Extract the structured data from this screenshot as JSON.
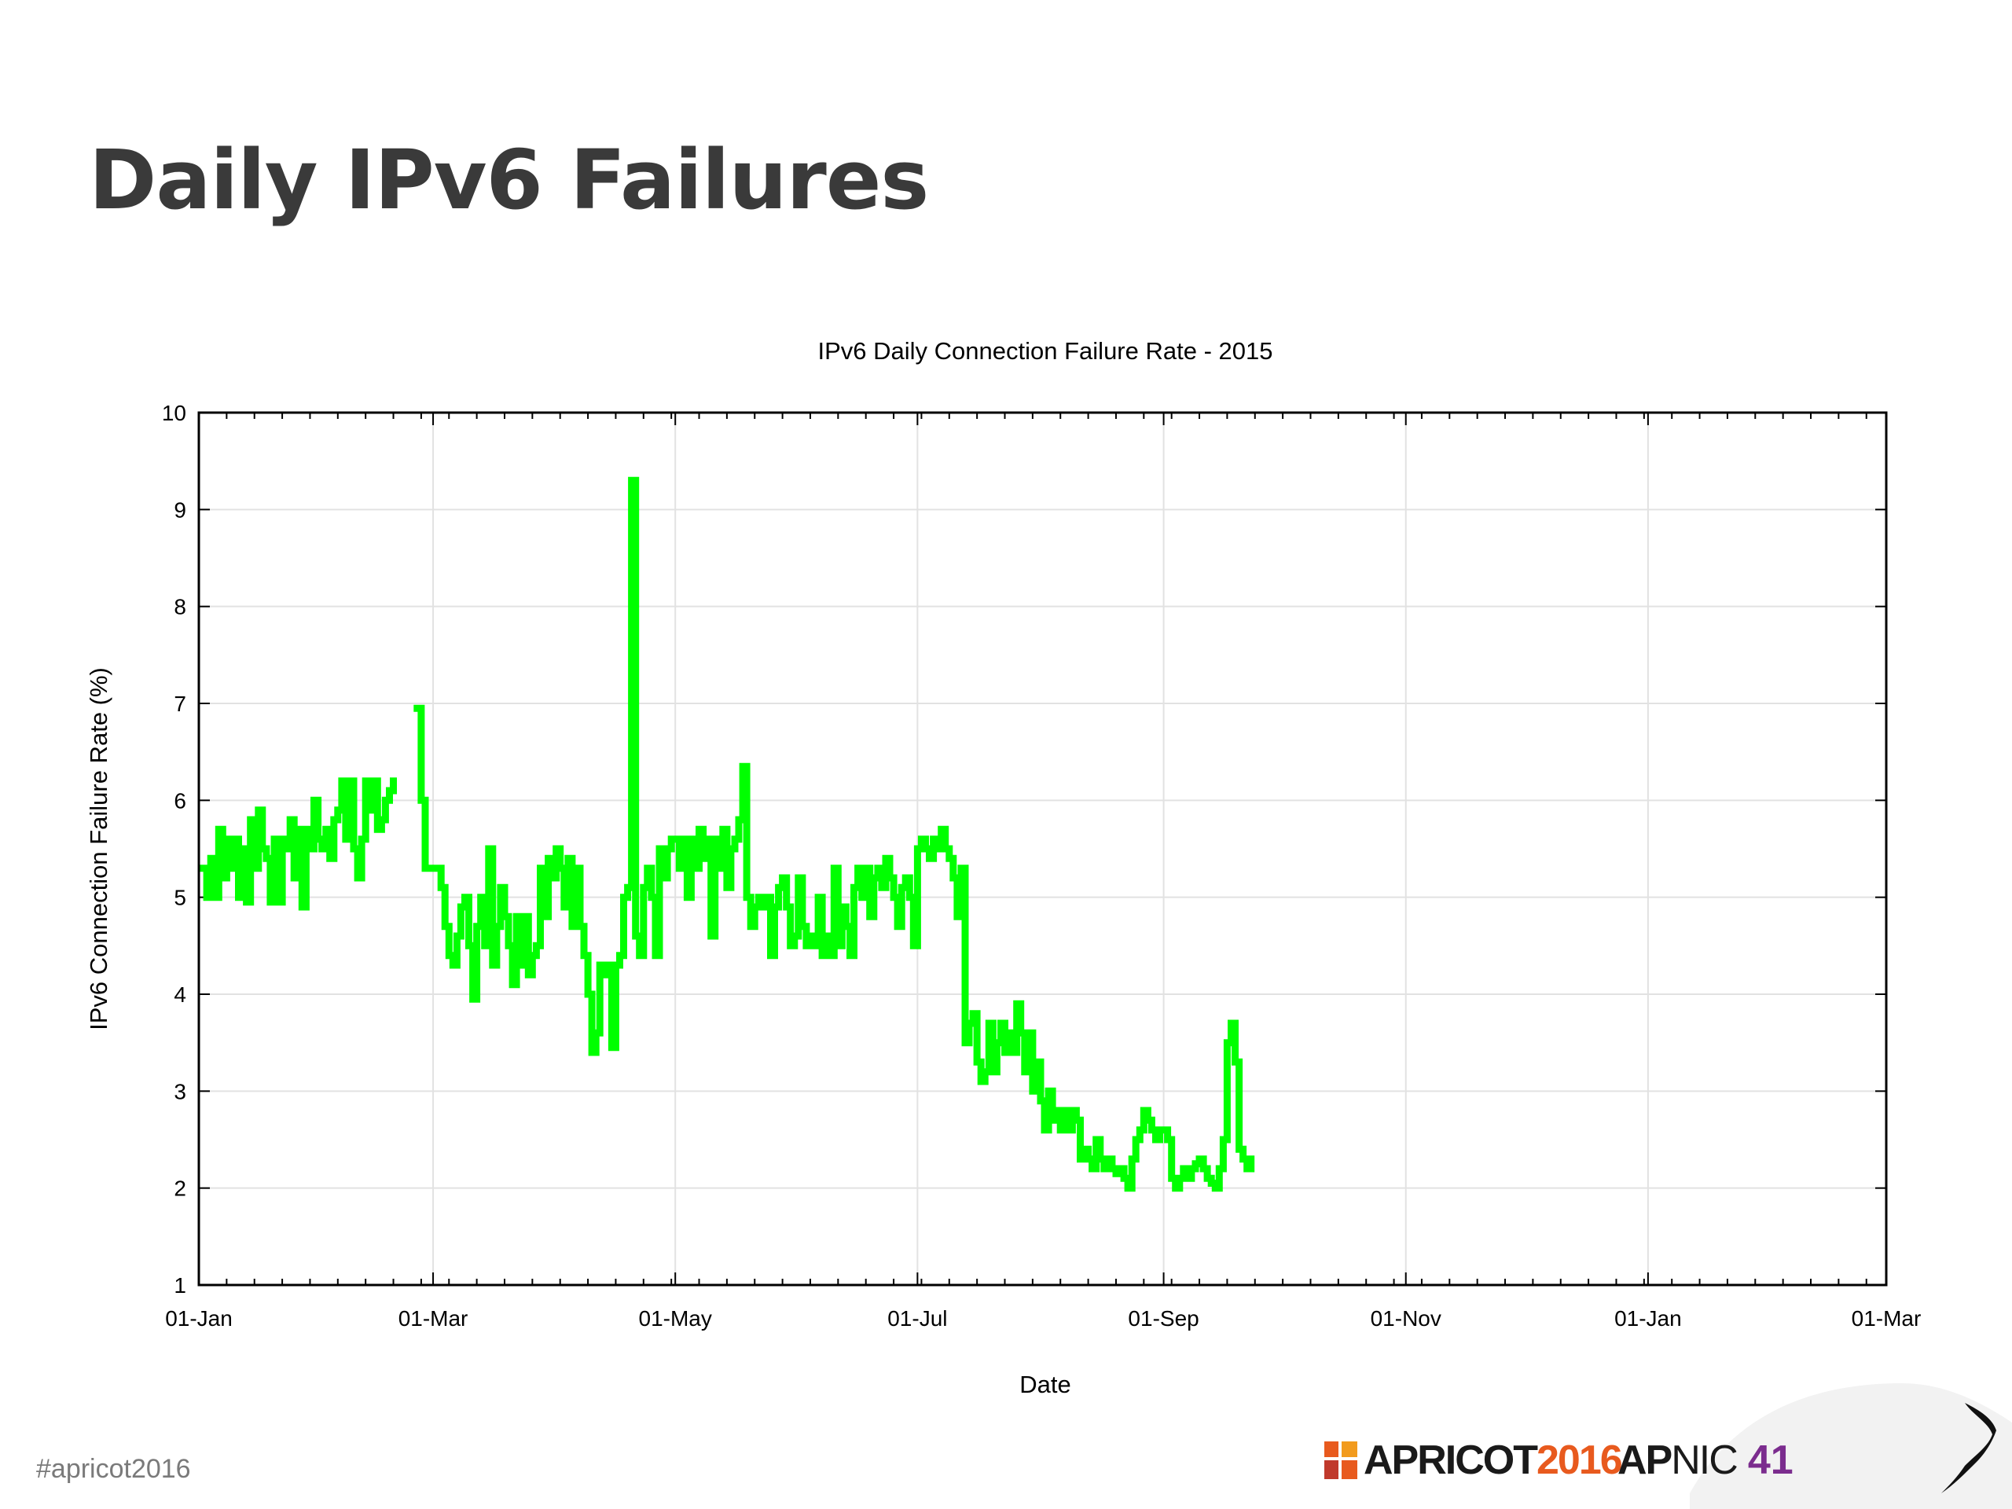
{
  "slide": {
    "title": "Daily IPv6 Failures",
    "hashtag": "#apricot2016"
  },
  "logos": {
    "apricot_word": "APRICOT",
    "apricot_year": "2016",
    "apnic_ap": "AP",
    "apnic_nic": "NIC",
    "apnic_num": "41"
  },
  "colors": {
    "series": "#00ff00",
    "title_text": "#3a3a3a",
    "apricot_accent": "#e85a1e",
    "apnic_accent": "#7b2c8e"
  },
  "chart_data": {
    "type": "line",
    "title": "IPv6 Daily Connection Failure Rate - 2015",
    "xlabel": "Date",
    "ylabel": "IPv6 Connection Failure Rate (%)",
    "xlim": [
      "2015-01-01",
      "2016-03-01"
    ],
    "ylim": [
      1,
      10
    ],
    "yticks": [
      1,
      2,
      3,
      4,
      5,
      6,
      7,
      8,
      9,
      10
    ],
    "xticks": [
      {
        "date": "2015-01-01",
        "label": "01-Jan"
      },
      {
        "date": "2015-03-01",
        "label": "01-Mar"
      },
      {
        "date": "2015-05-01",
        "label": "01-May"
      },
      {
        "date": "2015-07-01",
        "label": "01-Jul"
      },
      {
        "date": "2015-09-01",
        "label": "01-Sep"
      },
      {
        "date": "2015-11-01",
        "label": "01-Nov"
      },
      {
        "date": "2016-01-01",
        "label": "01-Jan"
      },
      {
        "date": "2016-03-01",
        "label": "01-Mar"
      }
    ],
    "grid": true,
    "series": [
      {
        "color": "#00ff00",
        "points": [
          [
            "2015-01-02",
            5.3
          ],
          [
            "2015-01-03",
            5.0
          ],
          [
            "2015-01-04",
            5.4
          ],
          [
            "2015-01-05",
            5.0
          ],
          [
            "2015-01-06",
            5.7
          ],
          [
            "2015-01-07",
            5.2
          ],
          [
            "2015-01-08",
            5.6
          ],
          [
            "2015-01-09",
            5.3
          ],
          [
            "2015-01-10",
            5.6
          ],
          [
            "2015-01-11",
            5.0
          ],
          [
            "2015-01-12",
            5.5
          ],
          [
            "2015-01-13",
            4.95
          ],
          [
            "2015-01-14",
            5.8
          ],
          [
            "2015-01-15",
            5.3
          ],
          [
            "2015-01-16",
            5.9
          ],
          [
            "2015-01-17",
            5.5
          ],
          [
            "2015-01-18",
            5.4
          ],
          [
            "2015-01-19",
            4.95
          ],
          [
            "2015-01-20",
            5.6
          ],
          [
            "2015-01-21",
            4.95
          ],
          [
            "2015-01-22",
            5.6
          ],
          [
            "2015-01-23",
            5.5
          ],
          [
            "2015-01-24",
            5.8
          ],
          [
            "2015-01-25",
            5.2
          ],
          [
            "2015-01-26",
            5.7
          ],
          [
            "2015-01-27",
            4.9
          ],
          [
            "2015-01-28",
            5.7
          ],
          [
            "2015-01-29",
            5.5
          ],
          [
            "2015-01-30",
            6.0
          ],
          [
            "2015-01-31",
            5.6
          ],
          [
            "2015-02-01",
            5.5
          ],
          [
            "2015-02-02",
            5.7
          ],
          [
            "2015-02-03",
            5.4
          ],
          [
            "2015-02-04",
            5.8
          ],
          [
            "2015-02-05",
            5.9
          ],
          [
            "2015-02-06",
            6.2
          ],
          [
            "2015-02-07",
            5.6
          ],
          [
            "2015-02-08",
            6.2
          ],
          [
            "2015-02-09",
            5.5
          ],
          [
            "2015-02-10",
            5.2
          ],
          [
            "2015-02-11",
            5.6
          ],
          [
            "2015-02-12",
            6.2
          ],
          [
            "2015-02-13",
            5.9
          ],
          [
            "2015-02-14",
            6.2
          ],
          [
            "2015-02-15",
            5.7
          ],
          [
            "2015-02-16",
            5.8
          ],
          [
            "2015-02-17",
            6.0
          ],
          [
            "2015-02-18",
            6.1
          ],
          [
            "2015-02-19",
            6.2
          ],
          [
            "2015-02-25",
            6.95
          ],
          [
            "2015-02-26",
            6.0
          ],
          [
            "2015-02-27",
            5.3
          ],
          [
            "2015-02-28",
            5.3
          ],
          [
            "2015-03-01",
            5.3
          ],
          [
            "2015-03-02",
            5.3
          ],
          [
            "2015-03-03",
            5.1
          ],
          [
            "2015-03-04",
            4.7
          ],
          [
            "2015-03-05",
            4.4
          ],
          [
            "2015-03-06",
            4.3
          ],
          [
            "2015-03-07",
            4.6
          ],
          [
            "2015-03-08",
            4.9
          ],
          [
            "2015-03-09",
            5.0
          ],
          [
            "2015-03-10",
            4.5
          ],
          [
            "2015-03-11",
            3.95
          ],
          [
            "2015-03-12",
            4.7
          ],
          [
            "2015-03-13",
            5.0
          ],
          [
            "2015-03-14",
            4.5
          ],
          [
            "2015-03-15",
            5.5
          ],
          [
            "2015-03-16",
            4.3
          ],
          [
            "2015-03-17",
            4.7
          ],
          [
            "2015-03-18",
            5.1
          ],
          [
            "2015-03-19",
            4.8
          ],
          [
            "2015-03-20",
            4.5
          ],
          [
            "2015-03-21",
            4.1
          ],
          [
            "2015-03-22",
            4.8
          ],
          [
            "2015-03-23",
            4.3
          ],
          [
            "2015-03-24",
            4.8
          ],
          [
            "2015-03-25",
            4.2
          ],
          [
            "2015-03-26",
            4.4
          ],
          [
            "2015-03-27",
            4.5
          ],
          [
            "2015-03-28",
            5.3
          ],
          [
            "2015-03-29",
            4.8
          ],
          [
            "2015-03-30",
            5.4
          ],
          [
            "2015-03-31",
            5.2
          ],
          [
            "2015-04-01",
            5.5
          ],
          [
            "2015-04-02",
            5.3
          ],
          [
            "2015-04-03",
            4.9
          ],
          [
            "2015-04-04",
            5.4
          ],
          [
            "2015-04-05",
            4.7
          ],
          [
            "2015-04-06",
            5.3
          ],
          [
            "2015-04-07",
            4.7
          ],
          [
            "2015-04-08",
            4.4
          ],
          [
            "2015-04-09",
            4.0
          ],
          [
            "2015-04-10",
            3.4
          ],
          [
            "2015-04-11",
            3.6
          ],
          [
            "2015-04-12",
            4.3
          ],
          [
            "2015-04-13",
            4.2
          ],
          [
            "2015-04-14",
            4.3
          ],
          [
            "2015-04-15",
            3.45
          ],
          [
            "2015-04-16",
            4.3
          ],
          [
            "2015-04-17",
            4.4
          ],
          [
            "2015-04-18",
            5.0
          ],
          [
            "2015-04-19",
            5.1
          ],
          [
            "2015-04-20",
            9.3
          ],
          [
            "2015-04-21",
            4.6
          ],
          [
            "2015-04-22",
            4.4
          ],
          [
            "2015-04-23",
            5.1
          ],
          [
            "2015-04-24",
            5.3
          ],
          [
            "2015-04-25",
            5.0
          ],
          [
            "2015-04-26",
            4.4
          ],
          [
            "2015-04-27",
            5.5
          ],
          [
            "2015-04-28",
            5.2
          ],
          [
            "2015-04-29",
            5.5
          ],
          [
            "2015-04-30",
            5.6
          ],
          [
            "2015-05-01",
            5.6
          ],
          [
            "2015-05-02",
            5.3
          ],
          [
            "2015-05-03",
            5.6
          ],
          [
            "2015-05-04",
            5.0
          ],
          [
            "2015-05-05",
            5.6
          ],
          [
            "2015-05-06",
            5.3
          ],
          [
            "2015-05-07",
            5.7
          ],
          [
            "2015-05-08",
            5.4
          ],
          [
            "2015-05-09",
            5.6
          ],
          [
            "2015-05-10",
            4.6
          ],
          [
            "2015-05-11",
            5.6
          ],
          [
            "2015-05-12",
            5.3
          ],
          [
            "2015-05-13",
            5.7
          ],
          [
            "2015-05-14",
            5.1
          ],
          [
            "2015-05-15",
            5.5
          ],
          [
            "2015-05-16",
            5.6
          ],
          [
            "2015-05-17",
            5.8
          ],
          [
            "2015-05-18",
            6.35
          ],
          [
            "2015-05-19",
            5.0
          ],
          [
            "2015-05-20",
            4.7
          ],
          [
            "2015-05-21",
            4.9
          ],
          [
            "2015-05-22",
            5.0
          ],
          [
            "2015-05-23",
            4.9
          ],
          [
            "2015-05-24",
            5.0
          ],
          [
            "2015-05-25",
            4.4
          ],
          [
            "2015-05-26",
            4.9
          ],
          [
            "2015-05-27",
            5.1
          ],
          [
            "2015-05-28",
            5.2
          ],
          [
            "2015-05-29",
            4.9
          ],
          [
            "2015-05-30",
            4.5
          ],
          [
            "2015-05-31",
            4.6
          ],
          [
            "2015-06-01",
            5.2
          ],
          [
            "2015-06-02",
            4.7
          ],
          [
            "2015-06-03",
            4.5
          ],
          [
            "2015-06-04",
            4.6
          ],
          [
            "2015-06-05",
            4.5
          ],
          [
            "2015-06-06",
            5.0
          ],
          [
            "2015-06-07",
            4.4
          ],
          [
            "2015-06-08",
            4.6
          ],
          [
            "2015-06-09",
            4.4
          ],
          [
            "2015-06-10",
            5.3
          ],
          [
            "2015-06-11",
            4.5
          ],
          [
            "2015-06-12",
            4.9
          ],
          [
            "2015-06-13",
            4.7
          ],
          [
            "2015-06-14",
            4.4
          ],
          [
            "2015-06-15",
            5.1
          ],
          [
            "2015-06-16",
            5.3
          ],
          [
            "2015-06-17",
            5.0
          ],
          [
            "2015-06-18",
            5.3
          ],
          [
            "2015-06-19",
            4.8
          ],
          [
            "2015-06-20",
            5.2
          ],
          [
            "2015-06-21",
            5.3
          ],
          [
            "2015-06-22",
            5.1
          ],
          [
            "2015-06-23",
            5.4
          ],
          [
            "2015-06-24",
            5.2
          ],
          [
            "2015-06-25",
            5.0
          ],
          [
            "2015-06-26",
            4.7
          ],
          [
            "2015-06-27",
            5.1
          ],
          [
            "2015-06-28",
            5.2
          ],
          [
            "2015-06-29",
            5.0
          ],
          [
            "2015-06-30",
            4.5
          ],
          [
            "2015-07-01",
            5.5
          ],
          [
            "2015-07-02",
            5.6
          ],
          [
            "2015-07-03",
            5.5
          ],
          [
            "2015-07-04",
            5.4
          ],
          [
            "2015-07-05",
            5.6
          ],
          [
            "2015-07-06",
            5.5
          ],
          [
            "2015-07-07",
            5.7
          ],
          [
            "2015-07-08",
            5.5
          ],
          [
            "2015-07-09",
            5.4
          ],
          [
            "2015-07-10",
            5.2
          ],
          [
            "2015-07-11",
            4.8
          ],
          [
            "2015-07-12",
            5.3
          ],
          [
            "2015-07-13",
            3.5
          ],
          [
            "2015-07-14",
            3.7
          ],
          [
            "2015-07-15",
            3.8
          ],
          [
            "2015-07-16",
            3.3
          ],
          [
            "2015-07-17",
            3.1
          ],
          [
            "2015-07-18",
            3.2
          ],
          [
            "2015-07-19",
            3.7
          ],
          [
            "2015-07-20",
            3.2
          ],
          [
            "2015-07-21",
            3.5
          ],
          [
            "2015-07-22",
            3.7
          ],
          [
            "2015-07-23",
            3.4
          ],
          [
            "2015-07-24",
            3.6
          ],
          [
            "2015-07-25",
            3.4
          ],
          [
            "2015-07-26",
            3.9
          ],
          [
            "2015-07-27",
            3.6
          ],
          [
            "2015-07-28",
            3.2
          ],
          [
            "2015-07-29",
            3.6
          ],
          [
            "2015-07-30",
            3.0
          ],
          [
            "2015-07-31",
            3.3
          ],
          [
            "2015-08-01",
            2.9
          ],
          [
            "2015-08-02",
            2.6
          ],
          [
            "2015-08-03",
            3.0
          ],
          [
            "2015-08-04",
            2.7
          ],
          [
            "2015-08-05",
            2.8
          ],
          [
            "2015-08-06",
            2.6
          ],
          [
            "2015-08-07",
            2.8
          ],
          [
            "2015-08-08",
            2.6
          ],
          [
            "2015-08-09",
            2.8
          ],
          [
            "2015-08-10",
            2.7
          ],
          [
            "2015-08-11",
            2.3
          ],
          [
            "2015-08-12",
            2.4
          ],
          [
            "2015-08-13",
            2.3
          ],
          [
            "2015-08-14",
            2.2
          ],
          [
            "2015-08-15",
            2.5
          ],
          [
            "2015-08-16",
            2.3
          ],
          [
            "2015-08-17",
            2.2
          ],
          [
            "2015-08-18",
            2.3
          ],
          [
            "2015-08-19",
            2.2
          ],
          [
            "2015-08-20",
            2.15
          ],
          [
            "2015-08-21",
            2.2
          ],
          [
            "2015-08-22",
            2.1
          ],
          [
            "2015-08-23",
            2.0
          ],
          [
            "2015-08-24",
            2.3
          ],
          [
            "2015-08-25",
            2.5
          ],
          [
            "2015-08-26",
            2.6
          ],
          [
            "2015-08-27",
            2.8
          ],
          [
            "2015-08-28",
            2.7
          ],
          [
            "2015-08-29",
            2.6
          ],
          [
            "2015-08-30",
            2.5
          ],
          [
            "2015-08-31",
            2.6
          ],
          [
            "2015-09-01",
            2.6
          ],
          [
            "2015-09-02",
            2.5
          ],
          [
            "2015-09-03",
            2.1
          ],
          [
            "2015-09-04",
            2.0
          ],
          [
            "2015-09-05",
            2.1
          ],
          [
            "2015-09-06",
            2.2
          ],
          [
            "2015-09-07",
            2.1
          ],
          [
            "2015-09-08",
            2.2
          ],
          [
            "2015-09-09",
            2.25
          ],
          [
            "2015-09-10",
            2.3
          ],
          [
            "2015-09-11",
            2.2
          ],
          [
            "2015-09-12",
            2.1
          ],
          [
            "2015-09-13",
            2.05
          ],
          [
            "2015-09-14",
            2.0
          ],
          [
            "2015-09-15",
            2.2
          ],
          [
            "2015-09-16",
            2.5
          ],
          [
            "2015-09-17",
            3.5
          ],
          [
            "2015-09-18",
            3.7
          ],
          [
            "2015-09-19",
            3.3
          ],
          [
            "2015-09-20",
            2.4
          ],
          [
            "2015-09-21",
            2.3
          ],
          [
            "2015-09-22",
            2.2
          ],
          [
            "2015-09-23",
            2.3
          ]
        ]
      }
    ]
  }
}
